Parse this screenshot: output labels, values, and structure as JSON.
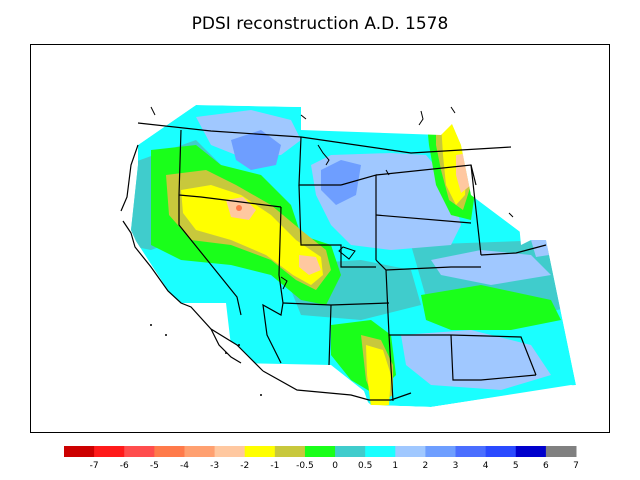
{
  "title": "PDSI reconstruction A.D. 1578",
  "legend": {
    "colors": [
      "#cc0000",
      "#ff1a1a",
      "#ff4d4d",
      "#ff7a4a",
      "#ffa070",
      "#ffc8a0",
      "#ffff00",
      "#c8c83c",
      "#1aff1a",
      "#40cccc",
      "#1affff",
      "#a0c8ff",
      "#6e9eff",
      "#4a6eff",
      "#2a4aff",
      "#0000cc",
      "#808080"
    ],
    "tick_labels": [
      "-7",
      "-6",
      "-5",
      "-4",
      "-3",
      "-2",
      "-1",
      "-0.5",
      "0",
      "0.5",
      "1",
      "2",
      "3",
      "4",
      "5",
      "6",
      "7"
    ]
  }
}
